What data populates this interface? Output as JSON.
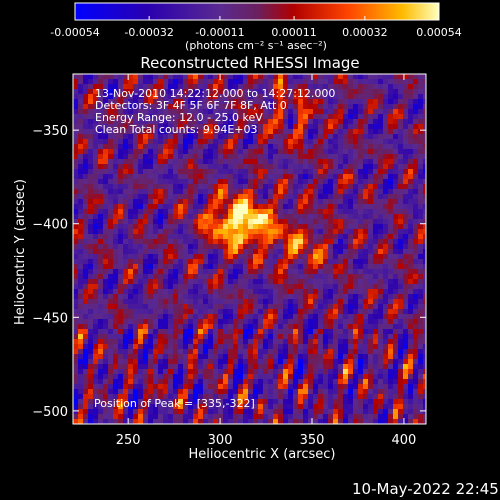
{
  "chart_data": {
    "type": "heatmap",
    "title": "Reconstructed RHESSI Image",
    "xlabel": "Heliocentric X (arcsec)",
    "ylabel": "Heliocentric Y (arcsec)",
    "xlim": [
      220,
      412
    ],
    "ylim": [
      -507,
      -320
    ],
    "x_ticks": [
      250,
      300,
      350,
      400
    ],
    "y_ticks": [
      -350,
      -400,
      -450,
      -500
    ],
    "colorbar": {
      "ticks": [
        "-0.00054",
        "-0.00032",
        "-0.00011",
        "0.00011",
        "0.00032",
        "0.00054"
      ],
      "unit_label": "(photons cm⁻² s⁻¹ asec⁻²)",
      "range": [
        -0.00054,
        0.00054
      ]
    },
    "annotations": [
      "13-Nov-2010 14:22:12.000 to 14:27:12.000",
      "Detectors: 3F 4F 5F 6F 7F 8F, Att 0",
      "Energy Range: 12.0 - 25.0 keV",
      "Clean    Total counts: 9.94E+03"
    ],
    "peak_label": "Position of Peak = [335,-322]",
    "peak": [
      335,
      -322
    ],
    "bright_source_center": [
      310,
      -398
    ]
  },
  "footer": {
    "date": "10-May-2022 22:45"
  }
}
